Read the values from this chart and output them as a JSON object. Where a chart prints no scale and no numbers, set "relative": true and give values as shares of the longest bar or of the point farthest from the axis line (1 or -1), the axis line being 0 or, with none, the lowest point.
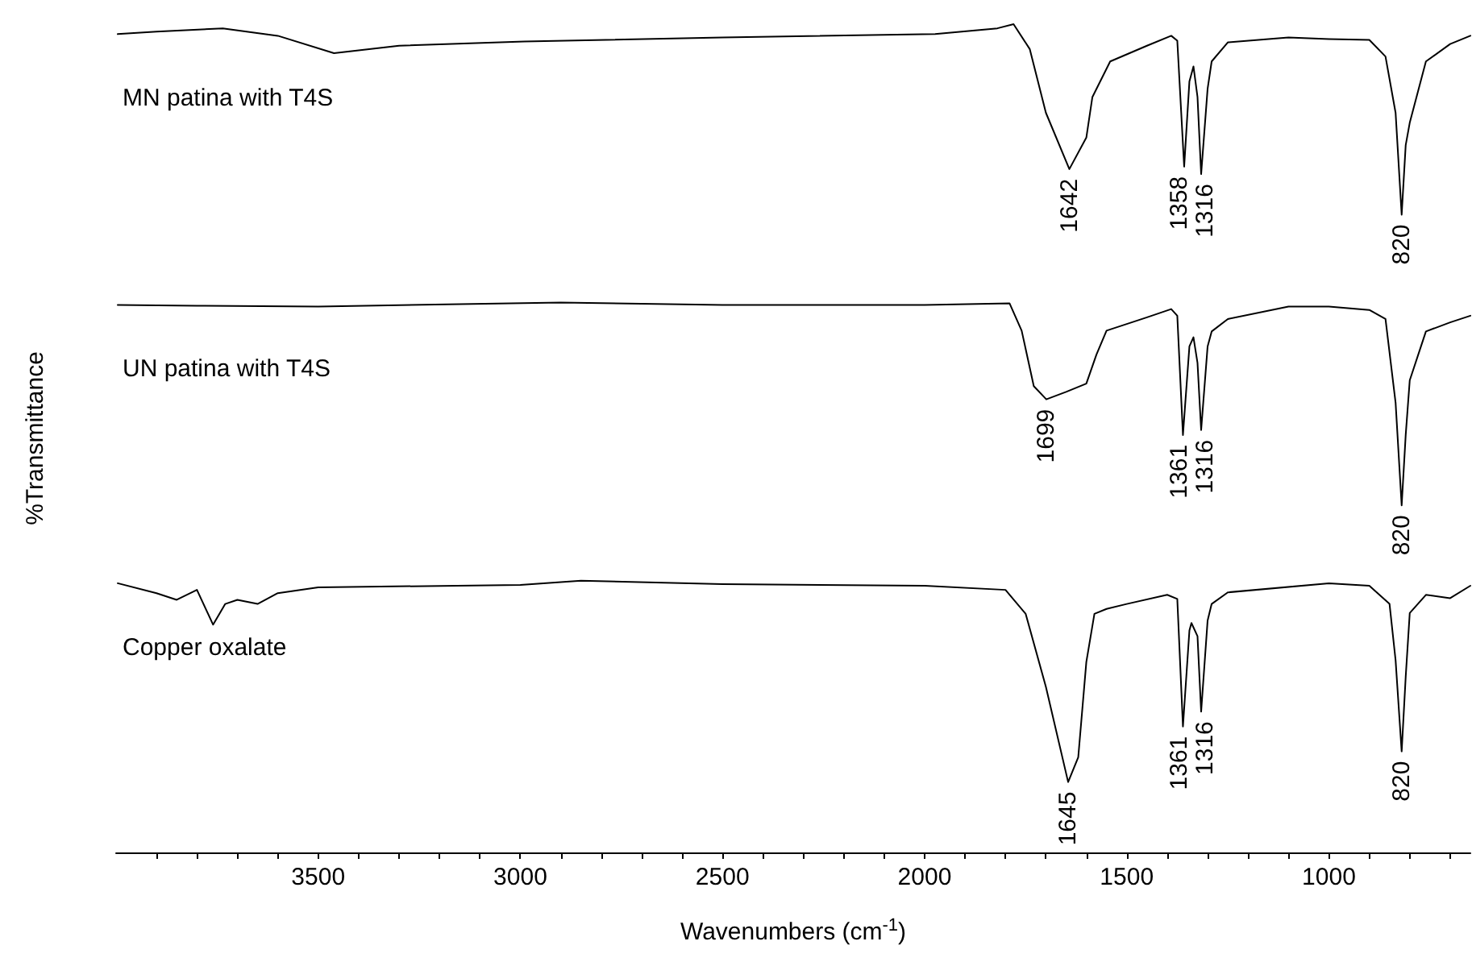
{
  "chart_data": {
    "type": "line",
    "xlabel": "Wavenumbers (cm$^{-1}$)",
    "ylabel": "%Transmittance",
    "relative": true,
    "xlim": [
      4000,
      650
    ],
    "xticks": [
      {
        "value": 3900,
        "label": null
      },
      {
        "value": 3800,
        "label": null
      },
      {
        "value": 3700,
        "label": null
      },
      {
        "value": 3600,
        "label": null
      },
      3500,
      {
        "value": 3400,
        "label": null
      },
      {
        "value": 3300,
        "label": null
      },
      {
        "value": 3200,
        "label": null
      },
      {
        "value": 3100,
        "label": null
      },
      3000,
      {
        "value": 2900,
        "label": null
      },
      {
        "value": 2800,
        "label": null
      },
      {
        "value": 2700,
        "label": null
      },
      {
        "value": 2600,
        "label": null
      },
      2500,
      {
        "value": 2400,
        "label": null
      },
      {
        "value": 2300,
        "label": null
      },
      {
        "value": 2200,
        "label": null
      },
      {
        "value": 2100,
        "label": null
      },
      2000,
      {
        "value": 1900,
        "label": null
      },
      {
        "value": 1800,
        "label": null
      },
      {
        "value": 1700,
        "label": null
      },
      {
        "value": 1600,
        "label": null
      },
      1500,
      {
        "value": 1400,
        "label": null
      },
      {
        "value": 1300,
        "label": null
      },
      {
        "value": 1200,
        "label": null
      },
      {
        "value": 1100,
        "label": null
      },
      1000,
      {
        "value": 900,
        "label": null
      },
      {
        "value": 800,
        "label": null
      },
      {
        "value": 700,
        "label": null
      }
    ],
    "marker": "none",
    "line_style": "solid",
    "legend": false,
    "series": [
      {
        "name": "MN patina with T4S",
        "color": "#000000",
        "x": [
          3996,
          3900,
          3736,
          3600,
          3461,
          3300,
          2990,
          2500,
          1974,
          1820,
          1780,
          1740,
          1700,
          1642,
          1600,
          1585,
          1541,
          1450,
          1390,
          1375,
          1358,
          1345,
          1335,
          1325,
          1316,
          1300,
          1290,
          1250,
          1100,
          1000,
          900,
          860,
          835,
          820,
          810,
          800,
          760,
          700,
          650
        ],
        "values": [
          0.988,
          0.991,
          0.995,
          0.986,
          0.965,
          0.974,
          0.979,
          0.984,
          0.988,
          0.995,
          1,
          0.97,
          0.893,
          0.825,
          0.863,
          0.912,
          0.955,
          0.974,
          0.986,
          0.98,
          0.828,
          0.931,
          0.949,
          0.912,
          0.819,
          0.922,
          0.955,
          0.978,
          0.984,
          0.982,
          0.981,
          0.961,
          0.893,
          0.77,
          0.854,
          0.881,
          0.955,
          0.976,
          0.986
        ]
      },
      {
        "name": "UN patina with T4S",
        "color": "#000000",
        "x": [
          3996,
          3800,
          3500,
          2900,
          2500,
          2000,
          1790,
          1760,
          1730,
          1699,
          1650,
          1600,
          1575,
          1550,
          1450,
          1390,
          1375,
          1361,
          1345,
          1335,
          1325,
          1316,
          1300,
          1290,
          1250,
          1100,
          1000,
          900,
          860,
          835,
          820,
          810,
          800,
          760,
          700,
          650
        ],
        "values": [
          0.661,
          0.66,
          0.659,
          0.664,
          0.661,
          0.661,
          0.663,
          0.63,
          0.563,
          0.547,
          0.556,
          0.566,
          0.601,
          0.63,
          0.646,
          0.656,
          0.648,
          0.504,
          0.611,
          0.622,
          0.591,
          0.51,
          0.611,
          0.629,
          0.644,
          0.659,
          0.659,
          0.655,
          0.644,
          0.543,
          0.419,
          0.504,
          0.57,
          0.629,
          0.64,
          0.648
        ]
      },
      {
        "name": "Copper oxalate",
        "color": "#000000",
        "x": [
          3996,
          3900,
          3850,
          3800,
          3760,
          3730,
          3700,
          3650,
          3600,
          3500,
          3000,
          2850,
          2500,
          2000,
          1800,
          1750,
          1700,
          1645,
          1620,
          1600,
          1580,
          1550,
          1500,
          1400,
          1375,
          1361,
          1345,
          1340,
          1325,
          1316,
          1300,
          1290,
          1250,
          1000,
          900,
          850,
          835,
          820,
          810,
          800,
          760,
          700,
          650
        ],
        "values": [
          0.325,
          0.313,
          0.305,
          0.317,
          0.275,
          0.3,
          0.305,
          0.3,
          0.313,
          0.32,
          0.323,
          0.328,
          0.324,
          0.322,
          0.317,
          0.288,
          0.2,
          0.085,
          0.115,
          0.23,
          0.288,
          0.294,
          0.3,
          0.311,
          0.306,
          0.152,
          0.268,
          0.277,
          0.261,
          0.17,
          0.28,
          0.3,
          0.314,
          0.325,
          0.322,
          0.3,
          0.232,
          0.122,
          0.212,
          0.289,
          0.311,
          0.307,
          0.322
        ]
      }
    ],
    "annotations": [
      {
        "text": "1642",
        "x": 1642,
        "y": 0.825
      },
      {
        "text": "1358",
        "x": 1358,
        "y": 0.828
      },
      {
        "text": "1316",
        "x": 1316,
        "y": 0.819
      },
      {
        "text": "820",
        "x": 820,
        "y": 0.77
      },
      {
        "text": "1699",
        "x": 1699,
        "y": 0.547
      },
      {
        "text": "1361",
        "x": 1361,
        "y": 0.504
      },
      {
        "text": "1316",
        "x": 1316,
        "y": 0.51
      },
      {
        "text": "820",
        "x": 820,
        "y": 0.419
      },
      {
        "text": "1645",
        "x": 1645,
        "y": 0.085
      },
      {
        "text": "1361",
        "x": 1361,
        "y": 0.152
      },
      {
        "text": "1316",
        "x": 1316,
        "y": 0.17
      },
      {
        "text": "820",
        "x": 820,
        "y": 0.122
      }
    ]
  }
}
